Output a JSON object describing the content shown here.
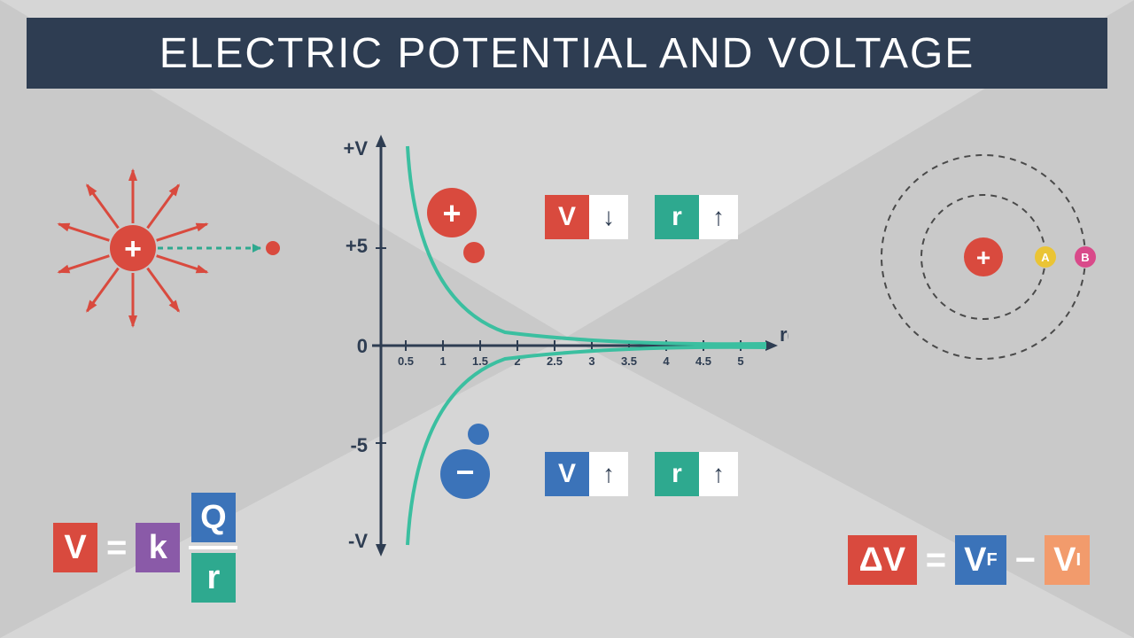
{
  "title": {
    "text": "ELECTRIC POTENTIAL AND VOLTAGE",
    "bg_color": "#2e3d52",
    "text_color": "#ffffff",
    "font_size": 48
  },
  "background": {
    "base_color": "#c9c9c9",
    "triangle_color": "#d6d6d6"
  },
  "colors": {
    "red": "#d94a3e",
    "blue": "#3b73b9",
    "teal": "#2ea98f",
    "purple": "#8a5aa8",
    "orange": "#f29b6c",
    "dark": "#2e3d52",
    "white": "#ffffff",
    "yellow": "#eac435",
    "pink": "#d94a8a"
  },
  "charge_diagram": {
    "center_color": "#d94a3e",
    "center_symbol": "+",
    "arrow_count": 10,
    "arrow_color": "#d94a3e",
    "dash_color": "#2ea98f",
    "test_charge_color": "#d94a3e"
  },
  "chart": {
    "y_labels": [
      "+V",
      "+5",
      "0",
      "-5",
      "-V"
    ],
    "x_label": "r(m)",
    "x_ticks": [
      "0.5",
      "1",
      "1.5",
      "2",
      "2.5",
      "3",
      "3.5",
      "4",
      "4.5",
      "5"
    ],
    "axis_color": "#2e3d52",
    "curve_color": "#3bbfa0",
    "pos_charge": {
      "color": "#d94a3e",
      "symbol": "+"
    },
    "neg_charge": {
      "color": "#3b73b9",
      "symbol": "−"
    },
    "dot_pos_color": "#d94a3e",
    "dot_neg_color": "#3b73b9"
  },
  "indicators": {
    "top": [
      {
        "label": "V",
        "label_bg": "#d94a3e",
        "arrow": "↓"
      },
      {
        "label": "r",
        "label_bg": "#2ea98f",
        "arrow": "↑"
      }
    ],
    "bottom": [
      {
        "label": "V",
        "label_bg": "#3b73b9",
        "arrow": "↑"
      },
      {
        "label": "r",
        "label_bg": "#2ea98f",
        "arrow": "↑"
      }
    ]
  },
  "orbit": {
    "center_color": "#d94a3e",
    "center_symbol": "+",
    "ring_color": "#4a4a4a",
    "points": [
      {
        "label": "A",
        "color": "#eac435"
      },
      {
        "label": "B",
        "color": "#d94a8a"
      }
    ]
  },
  "formula_left": {
    "parts": {
      "V": {
        "text": "V",
        "bg": "#d94a3e"
      },
      "eq": "=",
      "k": {
        "text": "k",
        "bg": "#8a5aa8"
      },
      "Q": {
        "text": "Q",
        "bg": "#3b73b9"
      },
      "r": {
        "text": "r",
        "bg": "#2ea98f"
      }
    }
  },
  "formula_right": {
    "parts": {
      "dV": {
        "text": "ΔV",
        "bg": "#d94a3e"
      },
      "eq": "=",
      "Vf": {
        "text": "V",
        "sub": "F",
        "bg": "#3b73b9"
      },
      "minus": "−",
      "Vi": {
        "text": "V",
        "sub": "I",
        "bg": "#f29b6c"
      }
    }
  }
}
